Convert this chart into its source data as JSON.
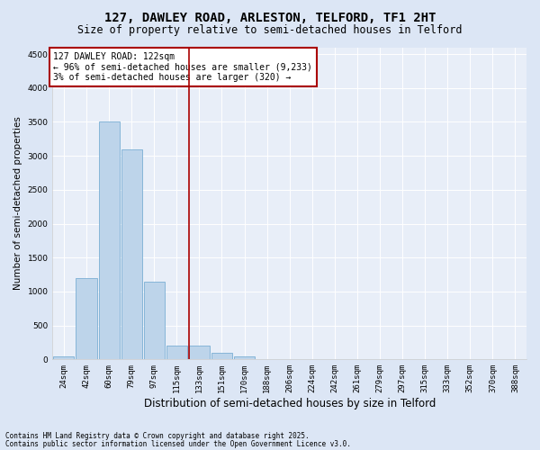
{
  "title_line1": "127, DAWLEY ROAD, ARLESTON, TELFORD, TF1 2HT",
  "title_line2": "Size of property relative to semi-detached houses in Telford",
  "xlabel": "Distribution of semi-detached houses by size in Telford",
  "ylabel": "Number of semi-detached properties",
  "footnote1": "Contains HM Land Registry data © Crown copyright and database right 2025.",
  "footnote2": "Contains public sector information licensed under the Open Government Licence v3.0.",
  "annotation_title": "127 DAWLEY ROAD: 122sqm",
  "annotation_line2": "← 96% of semi-detached houses are smaller (9,233)",
  "annotation_line3": "3% of semi-detached houses are larger (320) →",
  "bar_categories": [
    "24sqm",
    "42sqm",
    "60sqm",
    "79sqm",
    "97sqm",
    "115sqm",
    "133sqm",
    "151sqm",
    "170sqm",
    "188sqm",
    "206sqm",
    "224sqm",
    "242sqm",
    "261sqm",
    "279sqm",
    "297sqm",
    "315sqm",
    "333sqm",
    "352sqm",
    "370sqm",
    "388sqm"
  ],
  "bar_values": [
    45,
    1200,
    3500,
    3100,
    1150,
    200,
    200,
    100,
    50,
    10,
    0,
    0,
    0,
    0,
    0,
    0,
    0,
    0,
    0,
    0,
    0
  ],
  "vline_index": 6,
  "bar_color": "#bdd4ea",
  "bar_edge_color": "#7aaed4",
  "vline_color": "#aa0000",
  "annotation_box_edge": "#aa0000",
  "bg_color": "#e8eef8",
  "grid_color": "#ffffff",
  "fig_bg_color": "#dce6f5",
  "ylim": [
    0,
    4600
  ],
  "yticks": [
    0,
    500,
    1000,
    1500,
    2000,
    2500,
    3000,
    3500,
    4000,
    4500
  ],
  "title1_fontsize": 10,
  "title2_fontsize": 8.5,
  "ylabel_fontsize": 7.5,
  "xlabel_fontsize": 8.5,
  "tick_fontsize": 6.5,
  "annot_fontsize": 7,
  "footnote_fontsize": 5.5
}
